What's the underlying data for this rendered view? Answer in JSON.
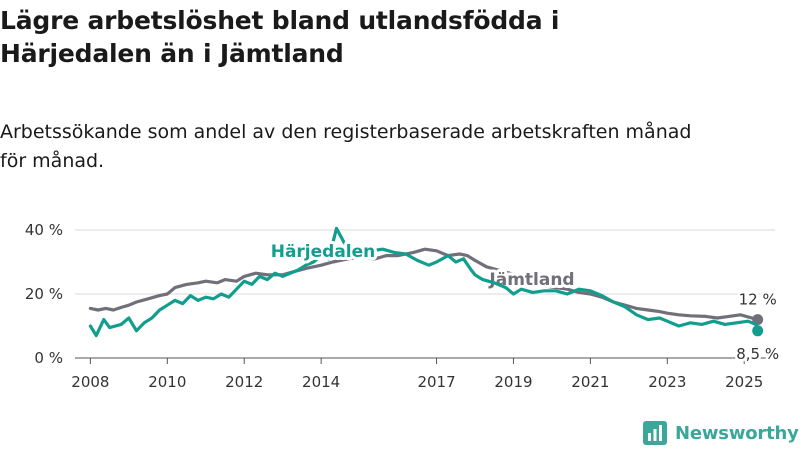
{
  "title": {
    "line1": "Lägre arbetslöshet bland utlandsfödda i",
    "line2": "Härjedalen än i Jämtland"
  },
  "subtitle": {
    "line1": "Arbetssökande som andel av den registerbaserade arbetskraften månad",
    "line2": "för månad."
  },
  "brand": {
    "name": "Newsworthy",
    "icon": "newsworthy-logo-icon"
  },
  "colors": {
    "harjedalen": "#129e8e",
    "jamtland": "#716f79",
    "grid": "#d9d9d9",
    "text": "#333333"
  },
  "chart_data": {
    "type": "line",
    "title": "Lägre arbetslöshet bland utlandsfödda i Härjedalen än i Jämtland",
    "subtitle": "Arbetssökande som andel av den registerbaserade arbetskraften månad för månad.",
    "xlabel": "",
    "ylabel": "",
    "unit": "%",
    "xlim": [
      2007.6,
      2025.8
    ],
    "ylim": [
      0,
      40
    ],
    "y_ticks": [
      0,
      20,
      40
    ],
    "y_tick_labels": [
      "0 %",
      "20 %",
      "40 %"
    ],
    "x_ticks": [
      2008,
      2010,
      2012,
      2014,
      2017,
      2019,
      2021,
      2023,
      2025
    ],
    "x_tick_labels": [
      "2008",
      "2010",
      "2012",
      "2014",
      "2017",
      "2019",
      "2021",
      "2023",
      "2025"
    ],
    "grid": "horizontal",
    "legend": "direct labels on lines",
    "series": [
      {
        "name": "Jämtland",
        "color": "#716f79",
        "end_label": "12 %",
        "points": [
          [
            2008.0,
            15.5
          ],
          [
            2008.2,
            15.0
          ],
          [
            2008.4,
            15.5
          ],
          [
            2008.6,
            15.0
          ],
          [
            2008.8,
            15.8
          ],
          [
            2009.0,
            16.5
          ],
          [
            2009.2,
            17.5
          ],
          [
            2009.5,
            18.5
          ],
          [
            2009.8,
            19.5
          ],
          [
            2010.0,
            20.0
          ],
          [
            2010.2,
            22.0
          ],
          [
            2010.5,
            23.0
          ],
          [
            2010.8,
            23.5
          ],
          [
            2011.0,
            24.0
          ],
          [
            2011.3,
            23.5
          ],
          [
            2011.5,
            24.5
          ],
          [
            2011.8,
            24.0
          ],
          [
            2012.0,
            25.5
          ],
          [
            2012.3,
            26.5
          ],
          [
            2012.6,
            26.0
          ],
          [
            2013.0,
            26.0
          ],
          [
            2013.3,
            27.0
          ],
          [
            2013.6,
            28.0
          ],
          [
            2014.0,
            29.0
          ],
          [
            2014.3,
            30.0
          ],
          [
            2014.7,
            31.0
          ],
          [
            2015.0,
            31.5
          ],
          [
            2015.4,
            31.0
          ],
          [
            2015.7,
            32.0
          ],
          [
            2016.0,
            32.0
          ],
          [
            2016.4,
            33.0
          ],
          [
            2016.7,
            34.0
          ],
          [
            2017.0,
            33.5
          ],
          [
            2017.3,
            32.0
          ],
          [
            2017.6,
            32.5
          ],
          [
            2017.8,
            32.0
          ],
          [
            2018.0,
            30.5
          ],
          [
            2018.3,
            28.5
          ],
          [
            2018.6,
            27.5
          ],
          [
            2018.9,
            26.5
          ],
          [
            2019.2,
            25.0
          ],
          [
            2019.5,
            23.5
          ],
          [
            2019.8,
            22.5
          ],
          [
            2020.1,
            22.0
          ],
          [
            2020.4,
            21.5
          ],
          [
            2020.7,
            20.5
          ],
          [
            2021.0,
            20.0
          ],
          [
            2021.3,
            19.0
          ],
          [
            2021.6,
            17.5
          ],
          [
            2021.9,
            16.5
          ],
          [
            2022.2,
            15.5
          ],
          [
            2022.5,
            15.0
          ],
          [
            2022.8,
            14.5
          ],
          [
            2023.0,
            14.0
          ],
          [
            2023.3,
            13.5
          ],
          [
            2023.6,
            13.2
          ],
          [
            2024.0,
            13.0
          ],
          [
            2024.3,
            12.5
          ],
          [
            2024.6,
            13.0
          ],
          [
            2024.9,
            13.5
          ],
          [
            2025.2,
            12.5
          ],
          [
            2025.35,
            12.0
          ]
        ]
      },
      {
        "name": "Härjedalen",
        "color": "#129e8e",
        "end_label": "8,5 %",
        "points": [
          [
            2008.0,
            10.0
          ],
          [
            2008.15,
            7.0
          ],
          [
            2008.35,
            12.0
          ],
          [
            2008.5,
            9.5
          ],
          [
            2008.8,
            10.5
          ],
          [
            2009.0,
            12.5
          ],
          [
            2009.2,
            8.5
          ],
          [
            2009.4,
            11.0
          ],
          [
            2009.6,
            12.5
          ],
          [
            2009.8,
            15.0
          ],
          [
            2010.0,
            16.5
          ],
          [
            2010.2,
            18.0
          ],
          [
            2010.4,
            17.0
          ],
          [
            2010.6,
            19.5
          ],
          [
            2010.8,
            18.0
          ],
          [
            2011.0,
            19.0
          ],
          [
            2011.2,
            18.5
          ],
          [
            2011.4,
            20.0
          ],
          [
            2011.6,
            19.0
          ],
          [
            2011.8,
            21.5
          ],
          [
            2012.0,
            24.0
          ],
          [
            2012.2,
            23.0
          ],
          [
            2012.4,
            25.5
          ],
          [
            2012.6,
            24.5
          ],
          [
            2012.8,
            26.5
          ],
          [
            2013.0,
            25.5
          ],
          [
            2013.2,
            26.5
          ],
          [
            2013.4,
            27.5
          ],
          [
            2013.6,
            29.0
          ],
          [
            2013.8,
            30.0
          ],
          [
            2014.0,
            32.0
          ],
          [
            2014.2,
            31.0
          ],
          [
            2014.4,
            40.5
          ],
          [
            2014.6,
            36.0
          ],
          [
            2014.8,
            34.0
          ],
          [
            2015.0,
            33.0
          ],
          [
            2015.3,
            33.5
          ],
          [
            2015.6,
            34.0
          ],
          [
            2015.9,
            33.0
          ],
          [
            2016.2,
            32.5
          ],
          [
            2016.5,
            30.5
          ],
          [
            2016.8,
            29.0
          ],
          [
            2017.0,
            30.0
          ],
          [
            2017.3,
            32.0
          ],
          [
            2017.5,
            30.0
          ],
          [
            2017.7,
            31.0
          ],
          [
            2017.9,
            27.5
          ],
          [
            2018.0,
            26.0
          ],
          [
            2018.2,
            24.5
          ],
          [
            2018.5,
            23.5
          ],
          [
            2018.8,
            22.0
          ],
          [
            2019.0,
            20.0
          ],
          [
            2019.2,
            21.5
          ],
          [
            2019.5,
            20.5
          ],
          [
            2019.8,
            21.0
          ],
          [
            2020.1,
            21.0
          ],
          [
            2020.4,
            20.0
          ],
          [
            2020.7,
            21.5
          ],
          [
            2021.0,
            21.0
          ],
          [
            2021.3,
            19.5
          ],
          [
            2021.6,
            17.5
          ],
          [
            2021.9,
            16.0
          ],
          [
            2022.2,
            13.5
          ],
          [
            2022.5,
            12.0
          ],
          [
            2022.8,
            12.5
          ],
          [
            2023.0,
            11.5
          ],
          [
            2023.3,
            10.0
          ],
          [
            2023.6,
            11.0
          ],
          [
            2023.9,
            10.5
          ],
          [
            2024.2,
            11.5
          ],
          [
            2024.5,
            10.5
          ],
          [
            2024.8,
            11.0
          ],
          [
            2025.1,
            11.5
          ],
          [
            2025.3,
            10.5
          ],
          [
            2025.35,
            8.5
          ]
        ]
      }
    ]
  }
}
